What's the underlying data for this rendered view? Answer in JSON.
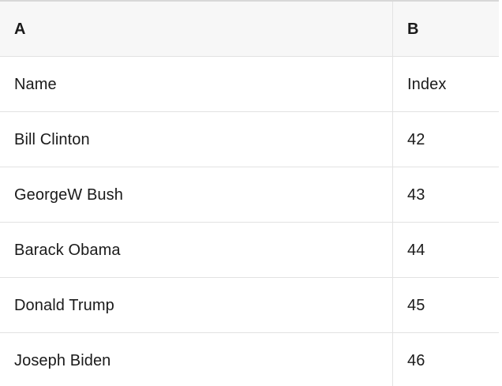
{
  "table": {
    "header": {
      "col_a": "A",
      "col_b": "B"
    },
    "rows": [
      {
        "a": "Name",
        "b": "Index"
      },
      {
        "a": "Bill Clinton",
        "b": "42"
      },
      {
        "a": "GeorgeW Bush",
        "b": "43"
      },
      {
        "a": "Barack Obama",
        "b": "44"
      },
      {
        "a": "Donald Trump",
        "b": "45"
      },
      {
        "a": "Joseph Biden",
        "b": "46"
      }
    ]
  },
  "colors": {
    "header_background": "#f7f7f7",
    "row_divider": "#e2e2e2",
    "top_border": "#d8d8d8",
    "text": "#1a1a1a"
  }
}
